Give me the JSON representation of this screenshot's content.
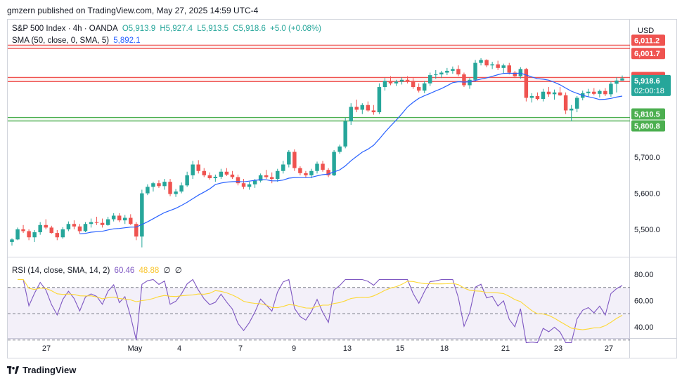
{
  "header": {
    "publisher": "gmzern published on TradingView.com, May 27, 2025 14:59 UTC-4"
  },
  "legend": {
    "symbol": "S&P 500 Index · 4h · OANDA",
    "open": "O5,913.9",
    "high": "H5,927.4",
    "low": "L5,913.5",
    "close": "C5,918.6",
    "change": "+5.0 (+0.08%)",
    "sma_label": "SMA (50, close, 0, SMA, 5)",
    "sma_value": "5,892.1",
    "rsi_label": "RSI (14, close, SMA, 14, 2)",
    "rsi_value": "60.46",
    "rsi_sma_value": "48.88",
    "rsi_extra1": "∅",
    "rsi_extra2": "∅"
  },
  "price_axis": {
    "currency": "USD",
    "ticks": [
      "5,700.0",
      "5,600.0",
      "5,500.0"
    ],
    "rsi_ticks": [
      "80.00",
      "60.00",
      "40.00"
    ]
  },
  "badges": [
    {
      "label": "6,011.2",
      "value": 6011.2,
      "color": "#ef5350"
    },
    {
      "label": "6,001.7",
      "value": 6001.7,
      "color": "#ef5350"
    },
    {
      "label": "5,921.5",
      "value": 5921.5,
      "color": "#ef5350"
    },
    {
      "label": "5,910.1",
      "value": 5910.1,
      "color": "#ef5350"
    },
    {
      "label": "5,810.5",
      "value": 5810.5,
      "color": "#4caf50"
    },
    {
      "label": "5,800.8",
      "value": 5800.8,
      "color": "#4caf50"
    }
  ],
  "current_badge": {
    "price": "5,918.6",
    "timer": "02:00:18",
    "value": 5918.6,
    "color": "#26a69a"
  },
  "time_axis": [
    "27",
    "May",
    "4",
    "7",
    "9",
    "13",
    "15",
    "18",
    "21",
    "23",
    "27"
  ],
  "brand": {
    "name": "TradingView"
  },
  "colors": {
    "up": "#26a69a",
    "down": "#ef5350",
    "sma": "#2962ff",
    "rsi": "#7e57c2",
    "rsi_sma": "#fdd835",
    "resistance": "#ef5350",
    "support": "#4caf50"
  },
  "chart_data": {
    "type": "candlestick",
    "y_range": [
      5424,
      6082
    ],
    "resistance_zones": [
      [
        6001.7,
        6011.2
      ],
      [
        5910.1,
        5921.5
      ]
    ],
    "support_zone": [
      5800.8,
      5810.5
    ],
    "candles": [
      [
        5465,
        5475,
        5455,
        5472
      ],
      [
        5472,
        5505,
        5470,
        5500
      ],
      [
        5500,
        5512,
        5490,
        5495
      ],
      [
        5495,
        5500,
        5470,
        5478
      ],
      [
        5478,
        5498,
        5465,
        5492
      ],
      [
        5492,
        5520,
        5485,
        5512
      ],
      [
        5512,
        5528,
        5500,
        5505
      ],
      [
        5505,
        5510,
        5488,
        5490
      ],
      [
        5490,
        5498,
        5470,
        5478
      ],
      [
        5478,
        5506,
        5474,
        5500
      ],
      [
        5500,
        5522,
        5495,
        5515
      ],
      [
        5515,
        5525,
        5500,
        5508
      ],
      [
        5508,
        5515,
        5488,
        5495
      ],
      [
        5495,
        5520,
        5492,
        5515
      ],
      [
        5515,
        5530,
        5505,
        5520
      ],
      [
        5520,
        5535,
        5512,
        5518
      ],
      [
        5518,
        5530,
        5505,
        5512
      ],
      [
        5512,
        5535,
        5510,
        5528
      ],
      [
        5528,
        5545,
        5522,
        5538
      ],
      [
        5538,
        5545,
        5520,
        5525
      ],
      [
        5525,
        5540,
        5515,
        5532
      ],
      [
        5532,
        5542,
        5512,
        5515
      ],
      [
        5515,
        5520,
        5470,
        5480
      ],
      [
        5480,
        5610,
        5450,
        5600
      ],
      [
        5600,
        5625,
        5595,
        5618
      ],
      [
        5618,
        5632,
        5605,
        5628
      ],
      [
        5628,
        5636,
        5615,
        5620
      ],
      [
        5620,
        5640,
        5610,
        5632
      ],
      [
        5632,
        5640,
        5592,
        5598
      ],
      [
        5598,
        5612,
        5590,
        5605
      ],
      [
        5605,
        5630,
        5600,
        5622
      ],
      [
        5622,
        5660,
        5618,
        5650
      ],
      [
        5650,
        5690,
        5640,
        5680
      ],
      [
        5680,
        5692,
        5655,
        5662
      ],
      [
        5662,
        5670,
        5645,
        5650
      ],
      [
        5650,
        5658,
        5638,
        5642
      ],
      [
        5642,
        5652,
        5632,
        5646
      ],
      [
        5646,
        5668,
        5640,
        5660
      ],
      [
        5660,
        5670,
        5648,
        5652
      ],
      [
        5652,
        5662,
        5640,
        5645
      ],
      [
        5645,
        5652,
        5622,
        5628
      ],
      [
        5628,
        5640,
        5612,
        5618
      ],
      [
        5618,
        5632,
        5610,
        5625
      ],
      [
        5625,
        5640,
        5615,
        5635
      ],
      [
        5635,
        5655,
        5630,
        5650
      ],
      [
        5650,
        5665,
        5640,
        5645
      ],
      [
        5645,
        5658,
        5628,
        5640
      ],
      [
        5640,
        5668,
        5632,
        5662
      ],
      [
        5662,
        5690,
        5655,
        5680
      ],
      [
        5680,
        5720,
        5672,
        5715
      ],
      [
        5715,
        5722,
        5662,
        5670
      ],
      [
        5670,
        5675,
        5650,
        5656
      ],
      [
        5656,
        5662,
        5645,
        5650
      ],
      [
        5650,
        5668,
        5642,
        5662
      ],
      [
        5662,
        5688,
        5655,
        5682
      ],
      [
        5682,
        5690,
        5660,
        5665
      ],
      [
        5665,
        5670,
        5645,
        5650
      ],
      [
        5650,
        5720,
        5648,
        5715
      ],
      [
        5715,
        5735,
        5710,
        5730
      ],
      [
        5730,
        5810,
        5725,
        5800
      ],
      [
        5800,
        5850,
        5790,
        5840
      ],
      [
        5840,
        5860,
        5825,
        5832
      ],
      [
        5832,
        5850,
        5820,
        5845
      ],
      [
        5845,
        5855,
        5826,
        5830
      ],
      [
        5830,
        5845,
        5818,
        5825
      ],
      [
        5825,
        5905,
        5820,
        5895
      ],
      [
        5895,
        5920,
        5885,
        5912
      ],
      [
        5912,
        5925,
        5900,
        5905
      ],
      [
        5905,
        5915,
        5898,
        5910
      ],
      [
        5910,
        5922,
        5902,
        5915
      ],
      [
        5915,
        5925,
        5905,
        5912
      ],
      [
        5912,
        5920,
        5890,
        5895
      ],
      [
        5895,
        5905,
        5880,
        5885
      ],
      [
        5885,
        5912,
        5878,
        5905
      ],
      [
        5905,
        5935,
        5898,
        5928
      ],
      [
        5928,
        5942,
        5918,
        5930
      ],
      [
        5930,
        5940,
        5920,
        5935
      ],
      [
        5935,
        5948,
        5928,
        5940
      ],
      [
        5940,
        5952,
        5932,
        5945
      ],
      [
        5945,
        5955,
        5925,
        5930
      ],
      [
        5930,
        5935,
        5895,
        5900
      ],
      [
        5900,
        5920,
        5890,
        5915
      ],
      [
        5915,
        5970,
        5910,
        5962
      ],
      [
        5962,
        5975,
        5955,
        5970
      ],
      [
        5970,
        5972,
        5950,
        5955
      ],
      [
        5955,
        5965,
        5945,
        5958
      ],
      [
        5958,
        5968,
        5942,
        5948
      ],
      [
        5948,
        5960,
        5932,
        5955
      ],
      [
        5955,
        5962,
        5930,
        5935
      ],
      [
        5935,
        5940,
        5920,
        5925
      ],
      [
        5925,
        5950,
        5918,
        5945
      ],
      [
        5945,
        5948,
        5855,
        5865
      ],
      [
        5865,
        5878,
        5852,
        5870
      ],
      [
        5870,
        5880,
        5858,
        5862
      ],
      [
        5862,
        5890,
        5855,
        5882
      ],
      [
        5882,
        5895,
        5868,
        5875
      ],
      [
        5875,
        5888,
        5860,
        5880
      ],
      [
        5880,
        5895,
        5870,
        5872
      ],
      [
        5872,
        5880,
        5820,
        5830
      ],
      [
        5830,
        5845,
        5800,
        5835
      ],
      [
        5835,
        5870,
        5825,
        5865
      ],
      [
        5865,
        5885,
        5858,
        5878
      ],
      [
        5878,
        5890,
        5868,
        5882
      ],
      [
        5882,
        5892,
        5872,
        5876
      ],
      [
        5876,
        5888,
        5866,
        5884
      ],
      [
        5884,
        5892,
        5870,
        5875
      ],
      [
        5875,
        5910,
        5868,
        5904
      ],
      [
        5904,
        5922,
        5880,
        5913
      ],
      [
        5913,
        5927,
        5913,
        5919
      ]
    ]
  }
}
